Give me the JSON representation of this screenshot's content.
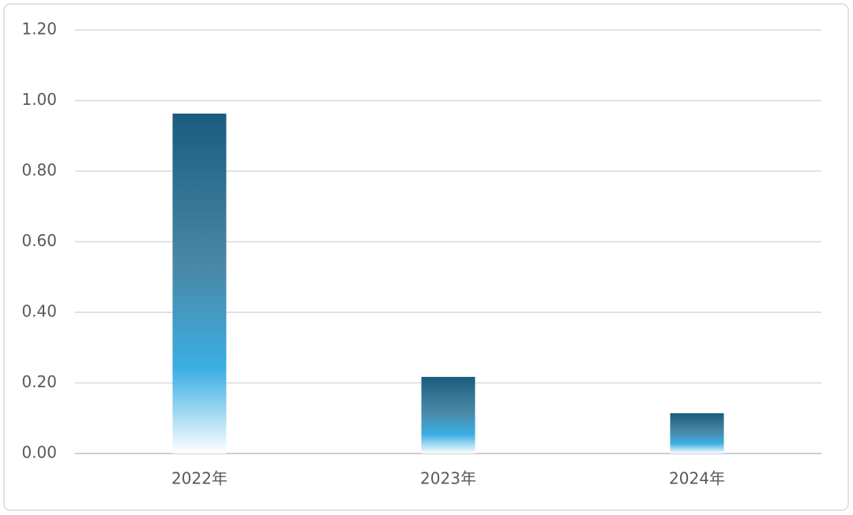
{
  "chart_data": {
    "type": "bar",
    "categories": [
      "2022年",
      "2023年",
      "2024年"
    ],
    "values": [
      0.963,
      0.217,
      0.114
    ],
    "ylim": [
      0,
      1.2
    ],
    "yticks": [
      {
        "value": 0,
        "label": "0.00"
      },
      {
        "value": 0.2,
        "label": "0.20"
      },
      {
        "value": 0.4,
        "label": "0.40"
      },
      {
        "value": 0.6,
        "label": "0.60"
      },
      {
        "value": 0.8,
        "label": "0.80"
      },
      {
        "value": 1.0,
        "label": "1.00"
      },
      {
        "value": 1.2,
        "label": "1.20"
      }
    ],
    "grid": true
  }
}
